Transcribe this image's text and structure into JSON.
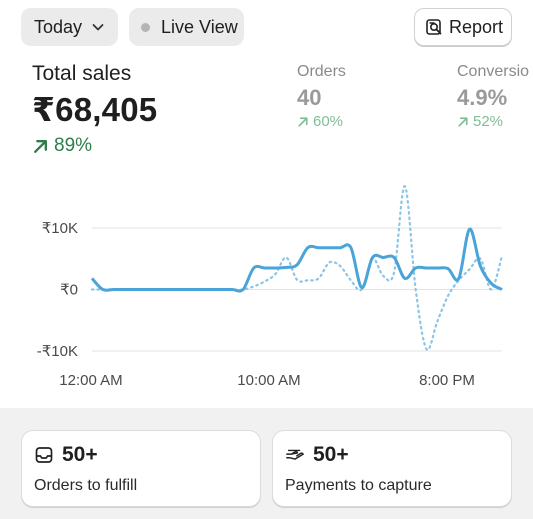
{
  "toolbar": {
    "date_range": "Today",
    "live_view": "Live View",
    "report": "Report"
  },
  "metrics": {
    "total_sales": {
      "label": "Total sales",
      "value": "₹68,405",
      "change": "89%"
    },
    "orders": {
      "label": "Orders",
      "value": "40",
      "change": "60%"
    },
    "conversion": {
      "label": "Conversio",
      "value": "4.9%",
      "change": "52%"
    }
  },
  "colors": {
    "primary_series": "#4aa3d9",
    "comparison_series": "#8cc4e6",
    "positive_change": "#2f7d4a",
    "muted_positive": "#7fbf96"
  },
  "chart_data": {
    "type": "line",
    "y_tick_labels": [
      "₹10K",
      "₹0",
      "-₹10K"
    ],
    "x_tick_labels": [
      "12:00 AM",
      "10:00 AM",
      "8:00 PM"
    ],
    "ylim": [
      -10000,
      10000
    ],
    "grid": true,
    "series": [
      {
        "style": "solid",
        "color": "#4aa3d9",
        "values": [
          1800,
          0,
          0,
          0,
          0,
          0,
          0,
          0,
          0,
          0,
          0,
          0,
          0,
          0,
          0,
          3500,
          3500,
          3500,
          3600,
          4000,
          6800,
          6800,
          6800,
          6800,
          6800,
          300,
          5200,
          5200,
          5200,
          1800,
          3500,
          3500,
          3500,
          3400,
          1800,
          9800,
          3800,
          1000,
          0
        ]
      },
      {
        "style": "dotted",
        "color": "#8cc4e6",
        "values": [
          0,
          0,
          0,
          0,
          0,
          0,
          0,
          0,
          0,
          0,
          0,
          0,
          0,
          0,
          0,
          500,
          1300,
          2500,
          5200,
          1600,
          1500,
          1800,
          4400,
          3800,
          1500,
          0,
          5000,
          2200,
          2800,
          16800,
          0,
          -9700,
          -5200,
          -1000,
          1500,
          3300,
          5000,
          0,
          5500
        ]
      }
    ],
    "x_range_hours": [
      0,
      24
    ]
  },
  "cards": {
    "fulfill": {
      "count": "50+",
      "caption": "Orders to fulfill"
    },
    "payments": {
      "count": "50+",
      "caption": "Payments to capture"
    }
  }
}
